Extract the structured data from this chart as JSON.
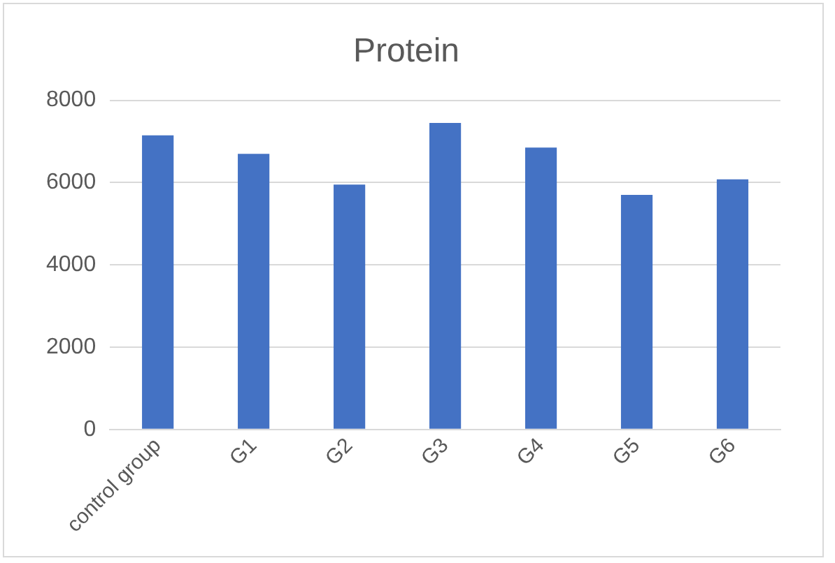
{
  "chart_data": {
    "type": "bar",
    "title": "Protein",
    "categories": [
      "control group",
      "G1",
      "G2",
      "G3",
      "G4",
      "G5",
      "G6"
    ],
    "values": [
      7150,
      6700,
      5950,
      7450,
      6850,
      5700,
      6080
    ],
    "color": "#4472c4",
    "ylim": [
      0,
      8000
    ],
    "yticks": [
      0,
      2000,
      4000,
      6000,
      8000
    ],
    "grid": "y",
    "legend": false
  }
}
